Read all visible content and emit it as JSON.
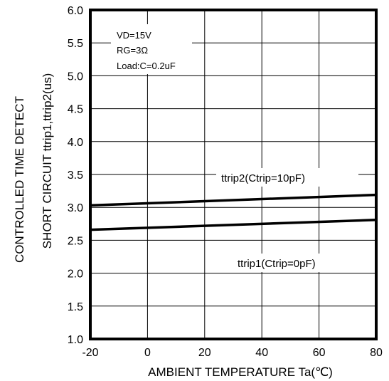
{
  "chart_data": {
    "type": "line",
    "xlabel": "AMBIENT  TEMPERATURE  Ta(℃)",
    "ylabel_line1": "CONTROLLED  TIME  DETECT",
    "ylabel_line2": "SHORT  CIRCUIT    ttrip1,ttrip2(us)",
    "xlim": [
      -20,
      80
    ],
    "ylim": [
      1.0,
      6.0
    ],
    "xticks": [
      "-20",
      "0",
      "20",
      "40",
      "60",
      "80"
    ],
    "yticks": [
      "1.0",
      "1.5",
      "2.0",
      "2.5",
      "3.0",
      "3.5",
      "4.0",
      "4.5",
      "5.0",
      "5.5",
      "6.0"
    ],
    "grid": true,
    "conditions": [
      "VD=15V",
      "RG=3Ω",
      "Load:C=0.2uF"
    ],
    "series": [
      {
        "name": "ttrip2(Ctrip=10pF)",
        "x": [
          -20,
          80
        ],
        "y": [
          3.03,
          3.19
        ]
      },
      {
        "name": "ttrip1(Ctrip=0pF)",
        "x": [
          -20,
          80
        ],
        "y": [
          2.66,
          2.81
        ]
      }
    ]
  }
}
